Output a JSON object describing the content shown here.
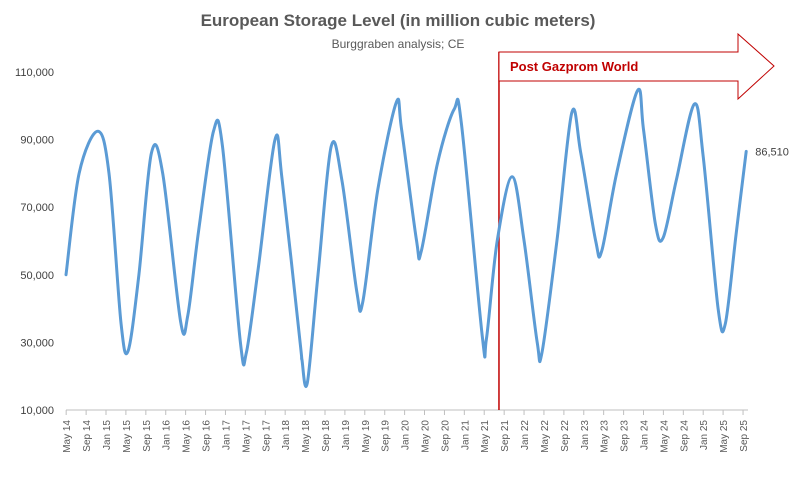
{
  "chart_data": {
    "type": "line",
    "title": "European Storage Level (in million cubic meters)",
    "subtitle": "Burggraben analysis; CE",
    "xlabel": "",
    "ylabel": "",
    "ylim": [
      10000,
      110000
    ],
    "yticks": [
      "10,000",
      "30,000",
      "50,000",
      "70,000",
      "90,000",
      "110,000"
    ],
    "ytick_values": [
      10000,
      30000,
      50000,
      70000,
      90000,
      110000
    ],
    "xlim": [
      2014.33,
      2025.75
    ],
    "xtick_labels": [
      "May 14",
      "Sep 14",
      "Jan 15",
      "May 15",
      "Sep 15",
      "Jan 16",
      "May 16",
      "Sep 16",
      "Jan 17",
      "May 17",
      "Sep 17",
      "Jan 18",
      "May 18",
      "Sep 18",
      "Jan 19",
      "May 19",
      "Sep 19",
      "Jan 20",
      "May 20",
      "Sep 20",
      "Jan 21",
      "May 21",
      "Sep 21",
      "Jan 22",
      "May 22",
      "Sep 22",
      "Jan 23",
      "May 23",
      "Sep 23",
      "Jan 24",
      "May 24",
      "Sep 24",
      "Jan 25",
      "May 25",
      "Sep 25"
    ],
    "xtick_values": [
      2014.333,
      2014.667,
      2015.0,
      2015.333,
      2015.667,
      2016.0,
      2016.333,
      2016.667,
      2017.0,
      2017.333,
      2017.667,
      2018.0,
      2018.333,
      2018.667,
      2019.0,
      2019.333,
      2019.667,
      2020.0,
      2020.333,
      2020.667,
      2021.0,
      2021.333,
      2021.667,
      2022.0,
      2022.333,
      2022.667,
      2023.0,
      2023.333,
      2023.667,
      2024.0,
      2024.333,
      2024.667,
      2025.0,
      2025.333,
      2025.667
    ],
    "series": [
      {
        "name": "European Storage Level",
        "color": "#5b9bd5",
        "x": [
          2014.33,
          2014.55,
          2014.86,
          2015.05,
          2015.25,
          2015.37,
          2015.55,
          2015.76,
          2015.95,
          2016.25,
          2016.37,
          2016.55,
          2016.8,
          2016.95,
          2017.25,
          2017.35,
          2017.55,
          2017.83,
          2017.95,
          2018.25,
          2018.28,
          2018.37,
          2018.55,
          2018.77,
          2018.95,
          2019.2,
          2019.3,
          2019.55,
          2019.86,
          2019.95,
          2020.2,
          2020.28,
          2020.55,
          2020.83,
          2020.95,
          2021.3,
          2021.37,
          2021.55,
          2021.8,
          2022.0,
          2022.22,
          2022.3,
          2022.55,
          2022.8,
          2022.95,
          2023.2,
          2023.3,
          2023.55,
          2023.9,
          2024.0,
          2024.2,
          2024.33,
          2024.55,
          2024.85,
          2025.0,
          2025.25,
          2025.37,
          2025.55,
          2025.72
        ],
        "values": [
          50000,
          80000,
          92500,
          80000,
          36000,
          27500,
          50000,
          86000,
          80000,
          36000,
          38000,
          63000,
          92500,
          88000,
          30000,
          27000,
          52000,
          90000,
          78000,
          30000,
          25000,
          18000,
          50000,
          88000,
          78000,
          45000,
          42000,
          75000,
          101000,
          93000,
          60000,
          57000,
          83000,
          99000,
          95000,
          32000,
          31000,
          60000,
          79000,
          60000,
          30000,
          27000,
          60000,
          98000,
          86000,
          60000,
          57000,
          80000,
          104500,
          93000,
          65000,
          61000,
          78000,
          100500,
          85000,
          40000,
          35500,
          62000,
          86510
        ]
      }
    ],
    "end_label": "86,510",
    "annotation": {
      "text": "Post Gazprom World",
      "x": 2021.58,
      "color": "#c00000"
    }
  }
}
